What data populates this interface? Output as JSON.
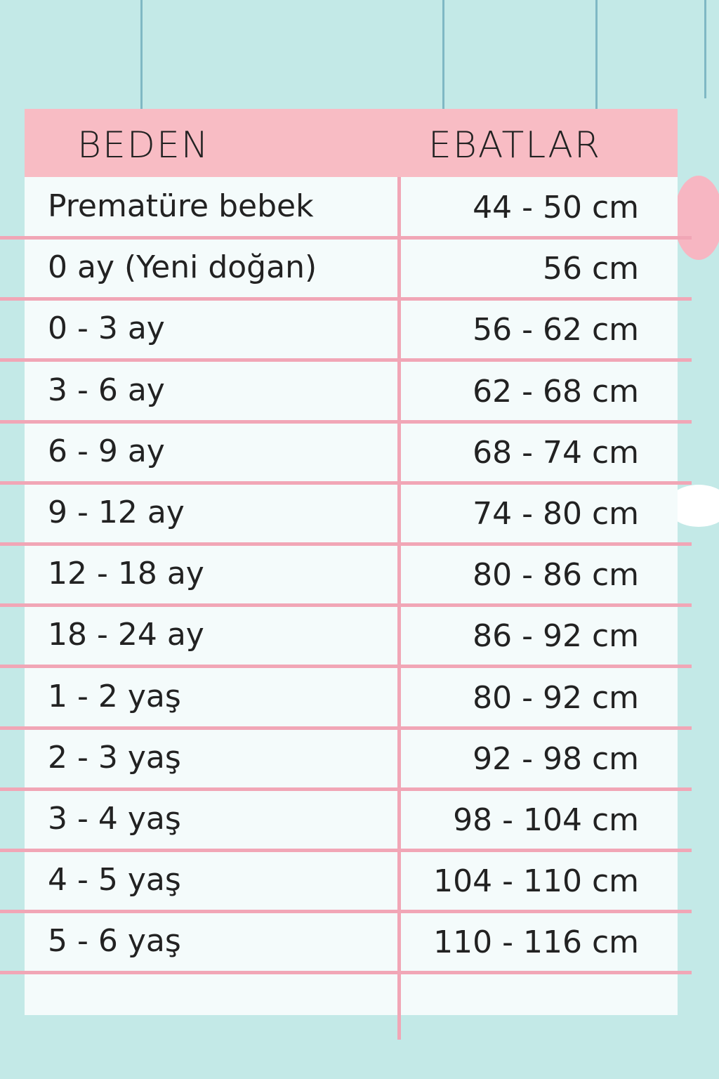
{
  "header": {
    "size_label": "BEDEN",
    "measure_label": "EBATLAR"
  },
  "colors": {
    "background": "#c3e9e7",
    "header": "#f8bcc4",
    "lines": "#f1a6b6",
    "table": "#f4fbfb"
  },
  "rows": [
    {
      "size": "Prematüre bebek",
      "measure": "44 - 50 cm"
    },
    {
      "size": "0 ay (Yeni doğan)",
      "measure": "56 cm"
    },
    {
      "size": "0 - 3 ay",
      "measure": "56 - 62 cm"
    },
    {
      "size": "3 - 6 ay",
      "measure": "62 - 68 cm"
    },
    {
      "size": "6 - 9 ay",
      "measure": "68 - 74 cm"
    },
    {
      "size": "9 - 12 ay",
      "measure": "74 - 80 cm"
    },
    {
      "size": "12 - 18 ay",
      "measure": "80 - 86 cm"
    },
    {
      "size": "18 - 24 ay",
      "measure": "86 - 92 cm"
    },
    {
      "size": "1 - 2 yaş",
      "measure": "80 - 92 cm"
    },
    {
      "size": "2 - 3 yaş",
      "measure": "92 - 98 cm"
    },
    {
      "size": "3 - 4 yaş",
      "measure": "98 - 104 cm"
    },
    {
      "size": "4 - 5 yaş",
      "measure": "104 - 110 cm"
    },
    {
      "size": "5 - 6 yaş",
      "measure": "110 - 116 cm"
    }
  ]
}
